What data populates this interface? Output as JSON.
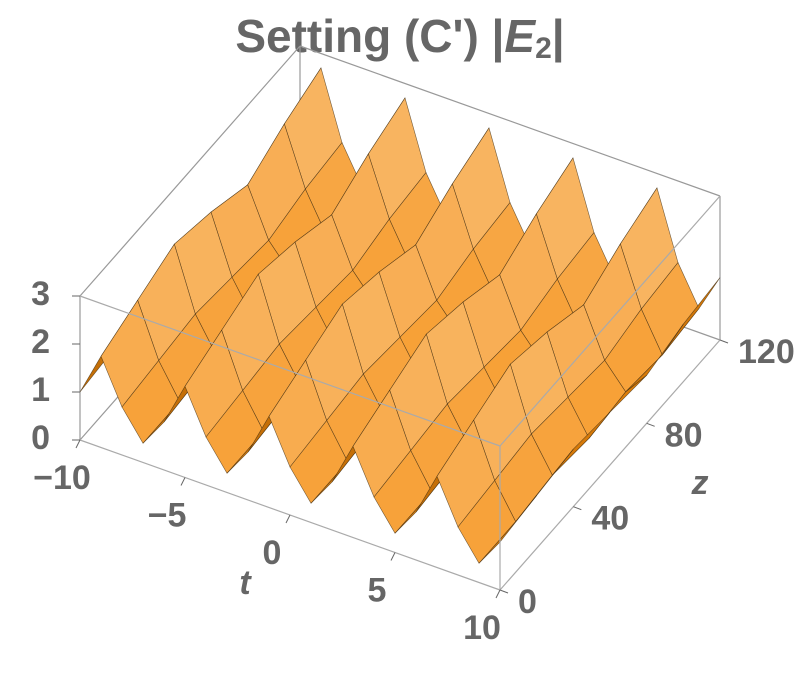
{
  "chart_data": {
    "type": "surface3d",
    "title": {
      "text": "Setting (C') |",
      "symbol": "E",
      "subscript": "2",
      "end": "|"
    },
    "xlabel": "t",
    "ylabel": "z",
    "color": "#f0961c",
    "x": [
      -10,
      -9,
      -8,
      -7,
      -6,
      -5,
      -4,
      -3,
      -2,
      -1,
      0,
      1,
      2,
      3,
      4,
      5,
      6,
      7,
      8,
      9,
      10
    ],
    "y": [
      0,
      20,
      40,
      60,
      80,
      100,
      120
    ],
    "values": [
      [
        1.0,
        1.9,
        1.0,
        0.4,
        1.0,
        1.9,
        1.0,
        0.4,
        1.0,
        1.9,
        1.0,
        0.4,
        1.0,
        1.9,
        1.0,
        0.4,
        1.0,
        1.9,
        1.0,
        0.4,
        1.0
      ],
      [
        1.1,
        2.2,
        1.1,
        0.4,
        1.1,
        2.2,
        1.1,
        0.4,
        1.1,
        2.2,
        1.1,
        0.4,
        1.1,
        2.2,
        1.1,
        0.4,
        1.1,
        2.2,
        1.1,
        0.4,
        1.1
      ],
      [
        1.2,
        2.5,
        1.2,
        0.5,
        1.2,
        2.5,
        1.2,
        0.5,
        1.2,
        2.5,
        1.2,
        0.5,
        1.2,
        2.5,
        1.2,
        0.5,
        1.2,
        2.5,
        1.2,
        0.5,
        1.2
      ],
      [
        1.1,
        2.3,
        1.1,
        0.4,
        1.1,
        2.3,
        1.1,
        0.4,
        1.1,
        2.3,
        1.1,
        0.4,
        1.1,
        2.3,
        1.1,
        0.4,
        1.1,
        2.3,
        1.1,
        0.4,
        1.1
      ],
      [
        1.0,
        2.0,
        1.0,
        0.5,
        1.0,
        2.0,
        1.0,
        0.5,
        1.0,
        2.0,
        1.0,
        0.5,
        1.0,
        2.0,
        1.0,
        0.5,
        1.0,
        2.0,
        1.0,
        0.5,
        1.0
      ],
      [
        1.2,
        2.4,
        1.2,
        0.4,
        1.2,
        2.4,
        1.2,
        0.4,
        1.2,
        2.4,
        1.2,
        0.4,
        1.2,
        2.4,
        1.2,
        0.4,
        1.2,
        2.4,
        1.2,
        0.4,
        1.2
      ],
      [
        1.3,
        2.7,
        1.3,
        0.5,
        1.3,
        2.7,
        1.3,
        0.5,
        1.3,
        2.7,
        1.3,
        0.5,
        1.3,
        2.7,
        1.3,
        0.5,
        1.3,
        2.7,
        1.3,
        0.5,
        1.3
      ]
    ],
    "xlim": [
      -10,
      10
    ],
    "ylim": [
      0,
      120
    ],
    "zlim": [
      0,
      3
    ],
    "xticks": [
      {
        "value": -10,
        "label": "−10"
      },
      {
        "value": -5,
        "label": "−5"
      },
      0,
      5,
      10
    ],
    "yticks": [
      0,
      40,
      80,
      120
    ],
    "zticks": [
      0,
      1,
      2,
      3
    ]
  }
}
